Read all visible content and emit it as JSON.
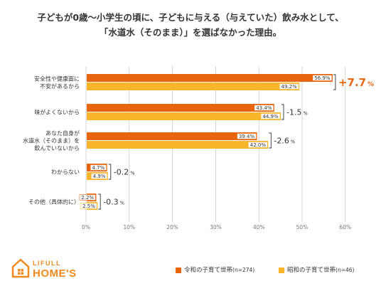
{
  "title_lines": [
    "子どもが0歳〜小学生の頃に、子どもに与える（与えていた）飲み水として、",
    "「水道水（そのまま）」を選ばなかった理由。"
  ],
  "brand": {
    "line1": "LIFULL",
    "line2": "HOME'S",
    "color": "#f08a1e"
  },
  "colors": {
    "reiwa": "#e8650f",
    "showa": "#f7b52c",
    "grid": "#cccccc",
    "diff_positive": "#e8650f",
    "diff_negative": "#333333"
  },
  "chart_data": {
    "type": "bar",
    "orientation": "horizontal",
    "categories": [
      [
        "安全性や健康面に",
        "不安があるから"
      ],
      [
        "味がよくないから"
      ],
      [
        "あなた自身が",
        "水道水（そのまま）を",
        "飲んでいないから"
      ],
      [
        "わからない"
      ],
      [
        "その他（具体的に）"
      ]
    ],
    "series": [
      {
        "name": "令和の子育て世帯",
        "n_label": "(n=274)",
        "values": [
          56.9,
          43.4,
          39.4,
          4.7,
          2.2
        ],
        "labels": [
          "56.9%",
          "43.4%",
          "39.4%",
          "4.7%",
          "2.2%"
        ]
      },
      {
        "name": "昭和の子育て世帯",
        "n_label": "(n=46)",
        "values": [
          49.2,
          44.9,
          42.0,
          4.9,
          2.5
        ],
        "labels": [
          "49.2%",
          "44.9%",
          "42.0%",
          "4.9%",
          "2.5%"
        ]
      }
    ],
    "differences": [
      {
        "value": "+7.7",
        "unit": "%",
        "positive": true
      },
      {
        "value": "-1.5",
        "unit": "%",
        "positive": false
      },
      {
        "value": "-2.6",
        "unit": "%",
        "positive": false
      },
      {
        "value": "-0.2",
        "unit": "%",
        "positive": false
      },
      {
        "value": "-0.3",
        "unit": "%",
        "positive": false
      }
    ],
    "xlim": [
      0,
      60
    ],
    "xticks": [
      "0%",
      "10%",
      "20%",
      "30%",
      "40%",
      "50%",
      "60%"
    ],
    "xtick_values": [
      0,
      10,
      20,
      30,
      40,
      50,
      60
    ],
    "grid": true,
    "legend_position": "bottom-right"
  }
}
